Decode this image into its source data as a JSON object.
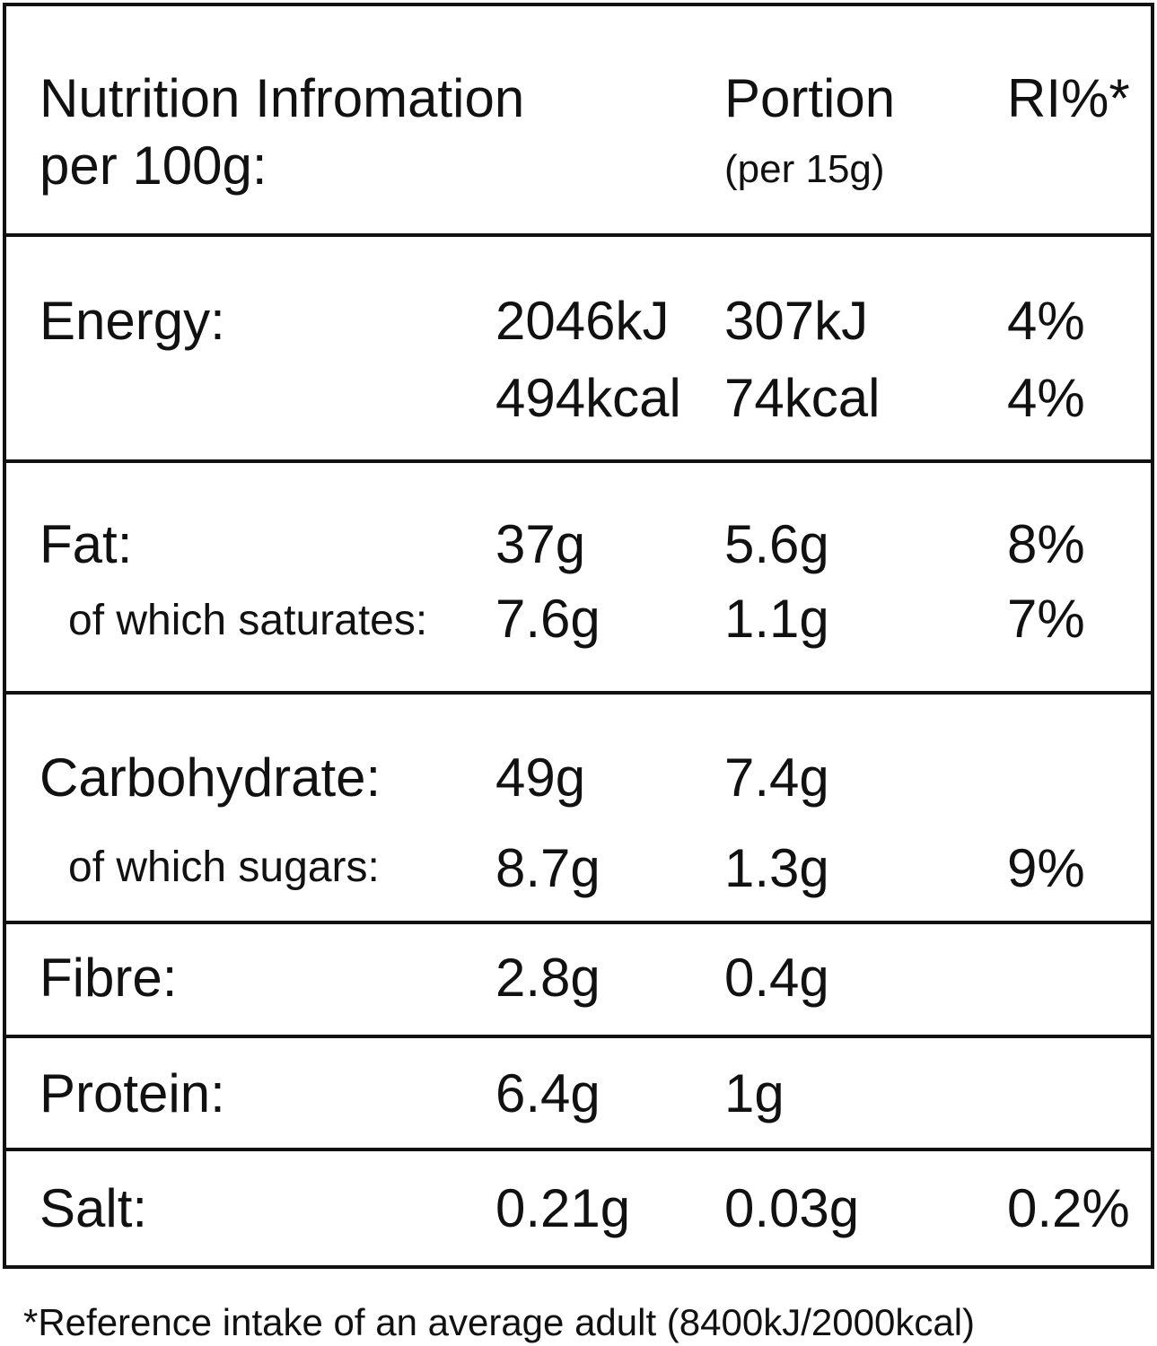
{
  "header": {
    "title": [
      "Nutrition Infromation",
      "per 100g:"
    ],
    "portion": "Portion",
    "portion_note": "(per 15g)",
    "ri": "RI%*"
  },
  "sections": [
    {
      "rows": [
        {
          "label": "Energy:",
          "per_100g": "2046kJ",
          "portion": "307kJ",
          "ri": "4%"
        },
        {
          "per_100g": "494kcal",
          "portion": "74kcal",
          "ri": "4%"
        }
      ]
    },
    {
      "rows": [
        {
          "label": "Fat:",
          "per_100g": "37g",
          "portion": "5.6g",
          "ri": "8%"
        },
        {
          "label": "of which saturates:",
          "per_100g": "7.6g",
          "portion": "1.1g",
          "ri": "7%"
        }
      ]
    },
    {
      "rows": [
        {
          "label": "Carbohydrate:",
          "per_100g": "49g",
          "portion": "7.4g"
        },
        {
          "label": "of which sugars:",
          "per_100g": "8.7g",
          "portion": "1.3g",
          "ri": "9%"
        }
      ]
    },
    {
      "rows": [
        {
          "label": "Fibre:",
          "per_100g": "2.8g",
          "portion": "0.4g"
        }
      ]
    },
    {
      "rows": [
        {
          "label": "Protein:",
          "per_100g": "6.4g",
          "portion": "1g"
        }
      ]
    },
    {
      "rows": [
        {
          "label": "Salt:",
          "per_100g": "0.21g",
          "portion": "0.03g",
          "ri": "0.2%"
        }
      ]
    }
  ],
  "footnote": "*Reference intake of an average adult (8400kJ/2000kcal)"
}
